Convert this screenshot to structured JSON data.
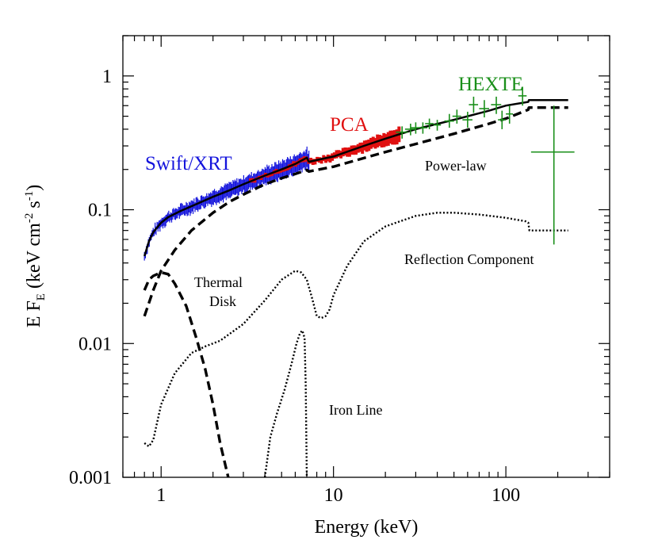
{
  "chart_data": {
    "type": "line",
    "xlabel": "Energy (keV)",
    "ylabel": {
      "main": "E F",
      "sub": "E",
      "units_pre": " (keV cm",
      "exp1": "-2",
      "units_mid": " s",
      "exp2": "-1",
      "units_post": ")"
    },
    "x_scale": "log",
    "y_scale": "log",
    "xlim": [
      0.6,
      400
    ],
    "ylim": [
      0.001,
      2
    ],
    "x_ticks": [
      {
        "value": 1,
        "label": "1"
      },
      {
        "value": 10,
        "label": "10"
      },
      {
        "value": 100,
        "label": "100"
      }
    ],
    "y_ticks": [
      {
        "value": 0.001,
        "label": "0.001"
      },
      {
        "value": 0.01,
        "label": "0.01"
      },
      {
        "value": 0.1,
        "label": "0.1"
      },
      {
        "value": 1,
        "label": "1"
      }
    ],
    "colors": {
      "swift": "#1414dc",
      "pca": "#e01010",
      "hexte": "#1a8f1a",
      "model": "#000000"
    },
    "annotations": {
      "swift": "Swift/XRT",
      "pca": "PCA",
      "hexte": "HEXTE",
      "power_law": "Power-law",
      "reflection": "Reflection Component",
      "thermal": "Thermal",
      "disk": "Disk",
      "iron": "Iron Line"
    },
    "series": [
      {
        "key": "total",
        "style": "solid",
        "color": "#000000",
        "x": [
          0.8,
          0.85,
          0.9,
          1.0,
          1.1,
          1.3,
          1.6,
          2.0,
          2.5,
          3.0,
          4.0,
          5.0,
          6.0,
          7.0,
          7.2,
          8.0,
          10,
          15,
          20,
          30,
          50,
          80,
          100,
          135,
          136,
          230
        ],
        "y": [
          0.045,
          0.058,
          0.068,
          0.08,
          0.088,
          0.098,
          0.11,
          0.125,
          0.14,
          0.155,
          0.18,
          0.2,
          0.22,
          0.245,
          0.228,
          0.235,
          0.25,
          0.3,
          0.34,
          0.4,
          0.47,
          0.55,
          0.6,
          0.64,
          0.66,
          0.66
        ]
      },
      {
        "key": "power_law",
        "style": "dashed",
        "color": "#000000",
        "x": [
          0.8,
          0.9,
          1.0,
          1.2,
          1.5,
          2.0,
          2.5,
          3.0,
          4.0,
          5.0,
          6.0,
          7.0,
          7.2,
          10,
          20,
          30,
          50,
          80,
          100,
          135,
          136,
          230
        ],
        "y": [
          0.016,
          0.025,
          0.035,
          0.05,
          0.07,
          0.095,
          0.115,
          0.13,
          0.155,
          0.172,
          0.185,
          0.198,
          0.193,
          0.21,
          0.27,
          0.31,
          0.37,
          0.44,
          0.48,
          0.56,
          0.58,
          0.58
        ]
      },
      {
        "key": "thermal_disk",
        "style": "dashed",
        "color": "#000000",
        "x": [
          0.8,
          0.85,
          0.9,
          1.0,
          1.1,
          1.2,
          1.4,
          1.6,
          1.8,
          2.0,
          2.2,
          2.45
        ],
        "y": [
          0.025,
          0.03,
          0.032,
          0.034,
          0.033,
          0.028,
          0.019,
          0.011,
          0.0065,
          0.0035,
          0.0018,
          0.001
        ]
      },
      {
        "key": "reflection",
        "style": "dotted",
        "color": "#000000",
        "x": [
          0.8,
          0.85,
          0.9,
          1.0,
          1.2,
          1.5,
          1.8,
          2.2,
          3.0,
          4.0,
          5.0,
          6.0,
          6.5,
          7.0,
          7.5,
          8.0,
          8.5,
          9.0,
          9.5,
          10,
          12,
          15,
          20,
          30,
          40,
          50,
          70,
          100,
          130,
          135,
          137,
          230
        ],
        "y": [
          0.0018,
          0.0017,
          0.0019,
          0.0035,
          0.006,
          0.0085,
          0.0095,
          0.0105,
          0.014,
          0.021,
          0.03,
          0.035,
          0.034,
          0.03,
          0.022,
          0.016,
          0.0155,
          0.016,
          0.018,
          0.023,
          0.038,
          0.058,
          0.075,
          0.09,
          0.095,
          0.095,
          0.092,
          0.087,
          0.082,
          0.08,
          0.07,
          0.07
        ]
      },
      {
        "key": "iron_line",
        "style": "dotted",
        "color": "#000000",
        "x": [
          4.0,
          4.3,
          4.7,
          5.2,
          5.7,
          6.1,
          6.4,
          6.6,
          6.8,
          6.9,
          7.0
        ],
        "y": [
          0.001,
          0.002,
          0.003,
          0.0045,
          0.007,
          0.01,
          0.012,
          0.0125,
          0.011,
          0.005,
          0.001
        ]
      }
    ],
    "hexte_points": [
      {
        "x": 25,
        "y": 0.38,
        "xerr": [
          23,
          27
        ],
        "yerr": [
          0.34,
          0.42
        ]
      },
      {
        "x": 28,
        "y": 0.4,
        "xerr": [
          26,
          30
        ],
        "yerr": [
          0.36,
          0.44
        ]
      },
      {
        "x": 30,
        "y": 0.41,
        "xerr": [
          28,
          32
        ],
        "yerr": [
          0.37,
          0.45
        ]
      },
      {
        "x": 33,
        "y": 0.41,
        "xerr": [
          31,
          35
        ],
        "yerr": [
          0.37,
          0.45
        ]
      },
      {
        "x": 36,
        "y": 0.44,
        "xerr": [
          34,
          38
        ],
        "yerr": [
          0.4,
          0.48
        ]
      },
      {
        "x": 40,
        "y": 0.43,
        "xerr": [
          38,
          42
        ],
        "yerr": [
          0.39,
          0.47
        ]
      },
      {
        "x": 47,
        "y": 0.46,
        "xerr": [
          44,
          50
        ],
        "yerr": [
          0.41,
          0.52
        ]
      },
      {
        "x": 52,
        "y": 0.5,
        "xerr": [
          49,
          55
        ],
        "yerr": [
          0.44,
          0.56
        ]
      },
      {
        "x": 60,
        "y": 0.47,
        "xerr": [
          56,
          64
        ],
        "yerr": [
          0.41,
          0.54
        ]
      },
      {
        "x": 65,
        "y": 0.61,
        "xerr": [
          61,
          69
        ],
        "yerr": [
          0.53,
          0.7
        ]
      },
      {
        "x": 75,
        "y": 0.57,
        "xerr": [
          70,
          80
        ],
        "yerr": [
          0.49,
          0.66
        ]
      },
      {
        "x": 88,
        "y": 0.61,
        "xerr": [
          82,
          94
        ],
        "yerr": [
          0.52,
          0.7
        ]
      },
      {
        "x": 95,
        "y": 0.47,
        "xerr": [
          90,
          100
        ],
        "yerr": [
          0.4,
          0.55
        ]
      },
      {
        "x": 105,
        "y": 0.52,
        "xerr": [
          100,
          110
        ],
        "yerr": [
          0.44,
          0.6
        ]
      },
      {
        "x": 125,
        "y": 0.71,
        "xerr": [
          118,
          132
        ],
        "yerr": [
          0.6,
          0.83
        ]
      },
      {
        "x": 190,
        "y": 0.27,
        "xerr": [
          140,
          250
        ],
        "yerr": [
          0.055,
          0.6
        ]
      }
    ]
  }
}
